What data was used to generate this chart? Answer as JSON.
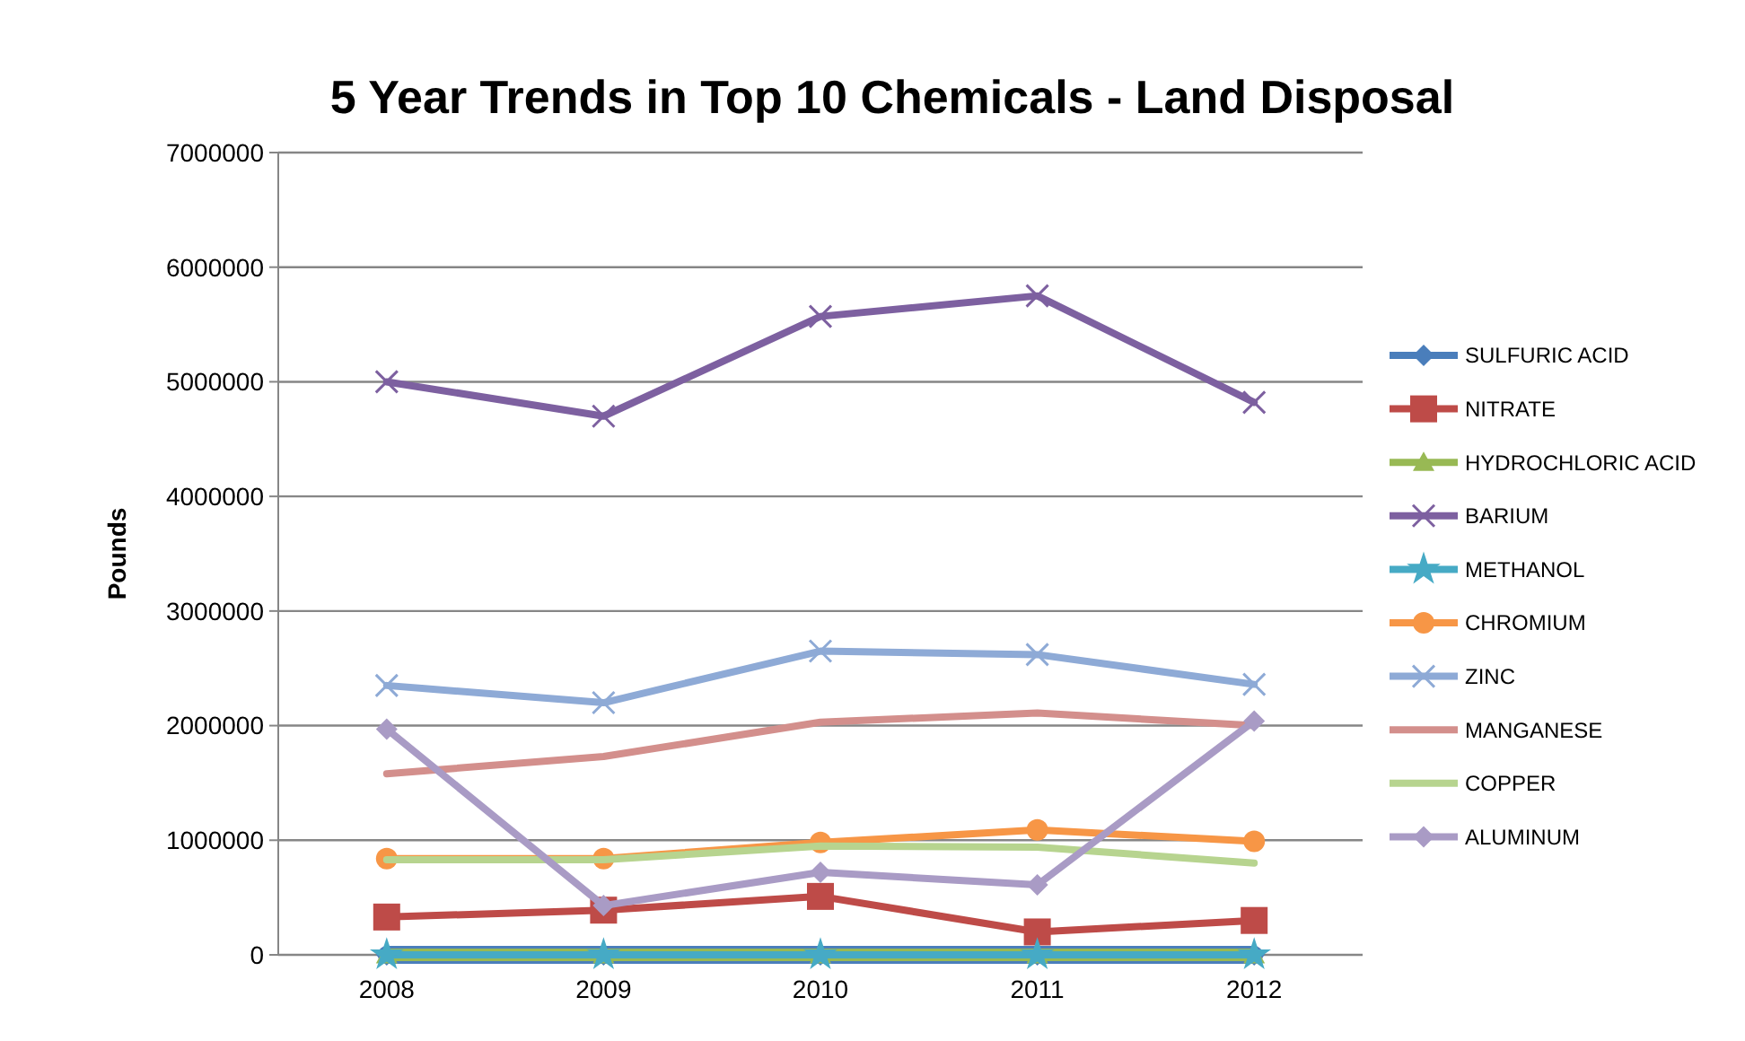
{
  "chart_data": {
    "type": "line",
    "title": "5 Year Trends in Top 10 Chemicals - Land Disposal",
    "ylabel": "Pounds",
    "categories": [
      "2008",
      "2009",
      "2010",
      "2011",
      "2012"
    ],
    "series": [
      {
        "name": "SULFURIC ACID",
        "color": "#4a7ebb",
        "marker": "diamond",
        "values": [
          0,
          0,
          0,
          0,
          0
        ]
      },
      {
        "name": "NITRATE",
        "color": "#be4b48",
        "marker": "square",
        "values": [
          330000,
          390000,
          510000,
          200000,
          300000
        ]
      },
      {
        "name": "HYDROCHLORIC ACID",
        "color": "#98b954",
        "marker": "triangle",
        "values": [
          0,
          0,
          0,
          0,
          0
        ]
      },
      {
        "name": "BARIUM",
        "color": "#7d60a0",
        "marker": "cross",
        "values": [
          5000000,
          4700000,
          5570000,
          5750000,
          4820000
        ]
      },
      {
        "name": "METHANOL",
        "color": "#46aac5",
        "marker": "star",
        "values": [
          0,
          0,
          0,
          0,
          0
        ]
      },
      {
        "name": "CHROMIUM",
        "color": "#f79646",
        "marker": "circle",
        "values": [
          840000,
          840000,
          980000,
          1090000,
          990000
        ]
      },
      {
        "name": "ZINC",
        "color": "#8eaad6",
        "marker": "cross",
        "values": [
          2350000,
          2200000,
          2650000,
          2620000,
          2360000
        ]
      },
      {
        "name": "MANGANESE",
        "color": "#d38f8c",
        "marker": "none",
        "values": [
          1580000,
          1730000,
          2030000,
          2110000,
          2000000
        ]
      },
      {
        "name": "COPPER",
        "color": "#b7d48f",
        "marker": "none",
        "values": [
          830000,
          830000,
          950000,
          940000,
          800000
        ]
      },
      {
        "name": "ALUMINUM",
        "color": "#a99bc5",
        "marker": "diamond",
        "values": [
          1970000,
          430000,
          720000,
          610000,
          2040000
        ]
      }
    ],
    "ylim": [
      0,
      7000000
    ],
    "yticks": [
      0,
      1000000,
      2000000,
      3000000,
      4000000,
      5000000,
      6000000,
      7000000
    ],
    "grid": "y",
    "legend": "right"
  }
}
